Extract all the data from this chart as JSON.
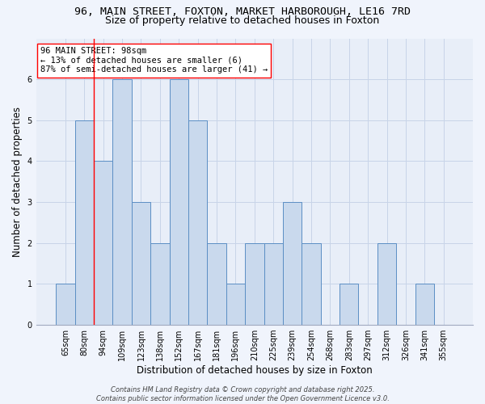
{
  "title_line1": "96, MAIN STREET, FOXTON, MARKET HARBOROUGH, LE16 7RD",
  "title_line2": "Size of property relative to detached houses in Foxton",
  "xlabel": "Distribution of detached houses by size in Foxton",
  "ylabel": "Number of detached properties",
  "categories": [
    "65sqm",
    "80sqm",
    "94sqm",
    "109sqm",
    "123sqm",
    "138sqm",
    "152sqm",
    "167sqm",
    "181sqm",
    "196sqm",
    "210sqm",
    "225sqm",
    "239sqm",
    "254sqm",
    "268sqm",
    "283sqm",
    "297sqm",
    "312sqm",
    "326sqm",
    "341sqm",
    "355sqm"
  ],
  "values": [
    1,
    5,
    4,
    6,
    3,
    2,
    6,
    5,
    2,
    1,
    2,
    2,
    3,
    2,
    0,
    1,
    0,
    2,
    0,
    1,
    0
  ],
  "bar_color": "#c9d9ed",
  "bar_edge_color": "#5b8ec4",
  "annotation_line1": "96 MAIN STREET: 98sqm",
  "annotation_line2": "← 13% of detached houses are smaller (6)",
  "annotation_line3": "87% of semi-detached houses are larger (41) →",
  "vline_x_index": 1.5,
  "ylim": [
    0,
    7
  ],
  "yticks": [
    0,
    1,
    2,
    3,
    4,
    5,
    6
  ],
  "grid_color": "#c8d4e8",
  "background_color": "#e8eef8",
  "fig_background_color": "#f0f4fc",
  "footer_text": "Contains HM Land Registry data © Crown copyright and database right 2025.\nContains public sector information licensed under the Open Government Licence v3.0.",
  "title_fontsize": 9.5,
  "subtitle_fontsize": 9,
  "tick_fontsize": 7,
  "label_fontsize": 8.5,
  "annotation_fontsize": 7.5,
  "footer_fontsize": 6
}
